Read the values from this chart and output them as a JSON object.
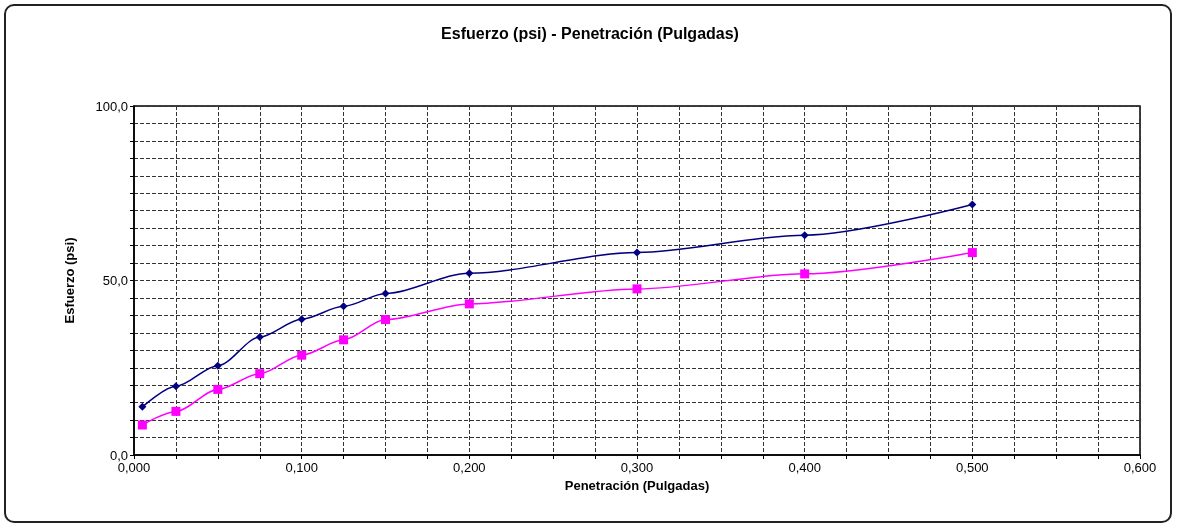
{
  "chart_data": {
    "type": "line",
    "title": "Esfuerzo (psi) - Penetración (Pulgadas)",
    "xlabel": "Penetración (Pulgadas)",
    "ylabel": "Esfuerzo (psi)",
    "x": [
      0.005,
      0.025,
      0.05,
      0.075,
      0.1,
      0.125,
      0.15,
      0.2,
      0.3,
      0.4,
      0.5
    ],
    "series": [
      {
        "color": "#000080",
        "marker": "diamond",
        "values": [
          13.8,
          19.7,
          25.6,
          33.8,
          38.9,
          42.6,
          46.3,
          52.1,
          58.0,
          63.0,
          71.8
        ]
      },
      {
        "color": "#ff00ff",
        "marker": "square",
        "values": [
          8.6,
          12.5,
          18.8,
          23.3,
          28.6,
          33.0,
          38.8,
          43.3,
          47.6,
          51.9,
          58.0
        ]
      }
    ],
    "xlim": [
      0,
      0.6
    ],
    "xticks": [
      {
        "value": 0,
        "label": "0,000"
      },
      {
        "value": 0.025,
        "label": null
      },
      {
        "value": 0.05,
        "label": null
      },
      {
        "value": 0.075,
        "label": null
      },
      {
        "value": 0.1,
        "label": "0,100"
      },
      {
        "value": 0.125,
        "label": null
      },
      {
        "value": 0.15,
        "label": null
      },
      {
        "value": 0.175,
        "label": null
      },
      {
        "value": 0.2,
        "label": "0,200"
      },
      {
        "value": 0.225,
        "label": null
      },
      {
        "value": 0.25,
        "label": null
      },
      {
        "value": 0.275,
        "label": null
      },
      {
        "value": 0.3,
        "label": "0,300"
      },
      {
        "value": 0.325,
        "label": null
      },
      {
        "value": 0.35,
        "label": null
      },
      {
        "value": 0.375,
        "label": null
      },
      {
        "value": 0.4,
        "label": "0,400"
      },
      {
        "value": 0.425,
        "label": null
      },
      {
        "value": 0.45,
        "label": null
      },
      {
        "value": 0.475,
        "label": null
      },
      {
        "value": 0.5,
        "label": "0,500"
      },
      {
        "value": 0.525,
        "label": null
      },
      {
        "value": 0.55,
        "label": null
      },
      {
        "value": 0.575,
        "label": null
      },
      {
        "value": 0.6,
        "label": "0,600"
      }
    ],
    "ylim": [
      0,
      100
    ],
    "yticks": [
      {
        "value": 0,
        "label": "0,0"
      },
      {
        "value": 5,
        "label": null
      },
      {
        "value": 10,
        "label": null
      },
      {
        "value": 15,
        "label": null
      },
      {
        "value": 20,
        "label": null
      },
      {
        "value": 25,
        "label": null
      },
      {
        "value": 30,
        "label": null
      },
      {
        "value": 35,
        "label": null
      },
      {
        "value": 40,
        "label": null
      },
      {
        "value": 45,
        "label": null
      },
      {
        "value": 50,
        "label": "50,0"
      },
      {
        "value": 55,
        "label": null
      },
      {
        "value": 60,
        "label": null
      },
      {
        "value": 65,
        "label": null
      },
      {
        "value": 70,
        "label": null
      },
      {
        "value": 75,
        "label": null
      },
      {
        "value": 80,
        "label": null
      },
      {
        "value": 85,
        "label": null
      },
      {
        "value": 90,
        "label": null
      },
      {
        "value": 95,
        "label": null
      },
      {
        "value": 100,
        "label": "100,0"
      }
    ],
    "grid": true,
    "line_style": "solid"
  }
}
